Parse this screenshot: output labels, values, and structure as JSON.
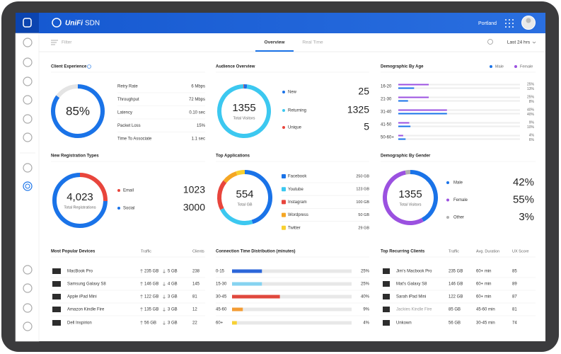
{
  "header": {
    "brand": "UniFi",
    "product": "SDN",
    "site": "Portland"
  },
  "toolbar": {
    "filter": "Filter",
    "tabs": [
      "Overview",
      "Real Time"
    ],
    "range": "Last 24 hrs"
  },
  "client_experience": {
    "title": "Client Experience",
    "score": {
      "value": 85,
      "value_label": "85%",
      "color": "#1a73e8"
    },
    "stats": [
      {
        "label": "Retry Rate",
        "value": "6 Mbps"
      },
      {
        "label": "Throughput",
        "value": "72 Mbps"
      },
      {
        "label": "Latency",
        "value": "0.10 sec"
      },
      {
        "label": "Packet Loss",
        "value": "15%"
      },
      {
        "label": "Time To Associate",
        "value": "1.1 sec"
      }
    ]
  },
  "audience_overview": {
    "title": "Audience Overview",
    "total": "1355",
    "total_label": "Total Visitors",
    "categories": [
      "New",
      "Returning",
      "Unique"
    ],
    "values": [
      25,
      1325,
      5
    ],
    "colors": [
      "#1a73e8",
      "#3cc8f0",
      "#e8453c"
    ]
  },
  "demographic_age": {
    "title": "Demographic By Age",
    "categories": [
      "16-20",
      "21-30",
      "31-40",
      "41-50",
      "50-60+"
    ],
    "series": [
      {
        "name": "Male",
        "color": "#1a73e8",
        "values": [
          13,
          8,
          40,
          10,
          6
        ],
        "value_labels": [
          "13%",
          "8%",
          "40%",
          "10%",
          "6%"
        ]
      },
      {
        "name": "Female",
        "color": "#9b51e0",
        "values": [
          25,
          25,
          40,
          9,
          4
        ],
        "value_labels": [
          "25%",
          "25%",
          "40%",
          "9%",
          "4%"
        ]
      }
    ]
  },
  "new_registration_types": {
    "title": "New Registration Types",
    "total": "4,023",
    "total_label": "Total Registrations",
    "categories": [
      "Email",
      "Social"
    ],
    "values": [
      1023,
      3000
    ],
    "colors": [
      "#e8453c",
      "#1a73e8"
    ]
  },
  "top_applications": {
    "title": "Top Applications",
    "total": "554",
    "total_label": "Total GB",
    "categories": [
      "Facebook",
      "Youtube",
      "Instagram",
      "Wordpress",
      "Twitter"
    ],
    "values": [
      250,
      123,
      100,
      50,
      29
    ],
    "value_labels": [
      "250 GB",
      "123 GB",
      "100 GB",
      "50 GB",
      "29 GB"
    ],
    "colors": [
      "#1a73e8",
      "#3cc8f0",
      "#e8453c",
      "#f5a623",
      "#f8d030"
    ]
  },
  "demographic_gender": {
    "title": "Demographic By Gender",
    "total": "1355",
    "total_label": "Total Visitors",
    "categories": [
      "Male",
      "Female",
      "Other"
    ],
    "values": [
      42,
      55,
      3
    ],
    "value_labels": [
      "42%",
      "55%",
      "3%"
    ],
    "colors": [
      "#1a73e8",
      "#9b51e0",
      "#b0b0b0"
    ]
  },
  "popular_devices": {
    "title": "Most Popular Devices",
    "columns": [
      "Traffic",
      "Clients"
    ],
    "rows": [
      {
        "name": "MacBook Pro",
        "up": "235 GB",
        "down": "5 GB",
        "clients": "238"
      },
      {
        "name": "Samsung Galaxy S8",
        "up": "146 GB",
        "down": "4 GB",
        "clients": "145"
      },
      {
        "name": "Apple iPad Mini",
        "up": "122 GB",
        "down": "3 GB",
        "clients": "81"
      },
      {
        "name": "Amazon Kindle Fire",
        "up": "135 GB",
        "down": "3 GB",
        "clients": "12"
      },
      {
        "name": "Dell Inspirion",
        "up": "56 GB",
        "down": "3 GB",
        "clients": "22"
      }
    ]
  },
  "connection_time": {
    "title": "Connection Time Distribution (minutes)",
    "categories": [
      "0-15",
      "15-30",
      "30-45",
      "45-60",
      "60+"
    ],
    "values": [
      25,
      25,
      40,
      9,
      4
    ],
    "value_labels": [
      "25%",
      "25%",
      "40%",
      "9%",
      "4%"
    ],
    "colors": [
      "#2b66d9",
      "#86d3f0",
      "#e0483d",
      "#f39c34",
      "#f7d033"
    ]
  },
  "recurring_clients": {
    "title": "Top Recurring Clients",
    "columns": [
      "Traffic",
      "Avg. Duration",
      "UX Score"
    ],
    "rows": [
      {
        "name": "Jim's Macbook Pro",
        "traffic": "235 GB",
        "duration": "60+ min",
        "score": "85"
      },
      {
        "name": "Mat's Galaxy S8",
        "traffic": "146 GB",
        "duration": "60+ min",
        "score": "89"
      },
      {
        "name": "Sarah iPad Mini",
        "traffic": "122 GB",
        "duration": "60+ min",
        "score": "87"
      },
      {
        "name": "Jackies Kindle Fire",
        "traffic": "85 GB",
        "duration": "45-60 min",
        "score": "81"
      },
      {
        "name": "Unkown",
        "traffic": "56 GB",
        "duration": "30-45 min",
        "score": "74"
      }
    ]
  }
}
